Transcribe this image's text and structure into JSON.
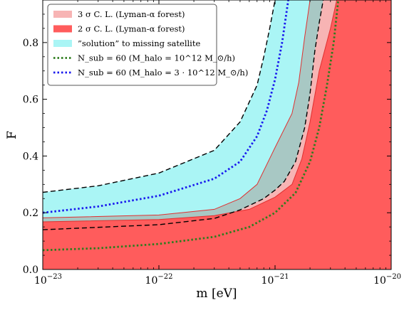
{
  "chart_data": {
    "type": "area",
    "xlabel": "m [eV]",
    "ylabel": "F",
    "xscale": "log",
    "xlim": [
      1e-23,
      1e-20
    ],
    "ylim": [
      0.0,
      0.95
    ],
    "x_tick_labels": [
      {
        "value": 1e-23,
        "mant": "10",
        "exp": "−23"
      },
      {
        "value": 1e-22,
        "mant": "10",
        "exp": "−22"
      },
      {
        "value": 1e-21,
        "mant": "10",
        "exp": "−21"
      },
      {
        "value": 1e-20,
        "mant": "10",
        "exp": "−20"
      }
    ],
    "y_tick_labels": [
      "0.0",
      "0.2",
      "0.4",
      "0.6",
      "0.8"
    ],
    "y_tick_values": [
      0.0,
      0.2,
      0.4,
      0.6,
      0.8
    ],
    "legend_position": "top-left",
    "colors": {
      "cl3": "#f7b4b4",
      "cl2": "#ff5c5c",
      "cl_line": "#e03030",
      "solution": "#aaf5f5",
      "overlap": "#a8c8c4",
      "n60_green": "#2e7d1e",
      "n60_blue": "#1a1aee"
    },
    "legend": [
      {
        "key": "cl3",
        "kind": "patch",
        "text": "3 σ  C. L. (Lyman-α forest)"
      },
      {
        "key": "cl2",
        "kind": "patch",
        "text": "2 σ  C. L. (Lyman-α forest)"
      },
      {
        "key": "solution",
        "kind": "patch",
        "text": "”solution” to missing satellite"
      },
      {
        "key": "n60_green",
        "kind": "dotted",
        "text": "N_sub = 60 (M_halo = 10^12 M_⊙/h)"
      },
      {
        "key": "n60_blue",
        "kind": "dotted",
        "text": "N_sub = 60 (M_halo = 3 · 10^12 M_⊙/h)"
      }
    ],
    "series": [
      {
        "key": "cl3",
        "kind": "region_upper_boundary",
        "points": [
          [
            1e-23,
            0.182
          ],
          [
            1e-22,
            0.192
          ],
          [
            3e-22,
            0.212
          ],
          [
            5e-22,
            0.25
          ],
          [
            7e-22,
            0.3
          ],
          [
            1e-21,
            0.43
          ],
          [
            1.4e-21,
            0.55
          ],
          [
            1.6e-21,
            0.66
          ],
          [
            1.8e-21,
            0.82
          ],
          [
            2e-21,
            0.95
          ]
        ]
      },
      {
        "key": "cl2",
        "kind": "region_upper_boundary",
        "points": [
          [
            1e-23,
            0.168
          ],
          [
            1e-22,
            0.176
          ],
          [
            3e-22,
            0.19
          ],
          [
            6e-22,
            0.212
          ],
          [
            1e-21,
            0.255
          ],
          [
            1.4e-21,
            0.3
          ],
          [
            1.7e-21,
            0.39
          ],
          [
            2e-21,
            0.52
          ],
          [
            2.4e-21,
            0.7
          ],
          [
            3e-21,
            0.85
          ],
          [
            3.4e-21,
            0.95
          ]
        ]
      },
      {
        "key": "solution_upper",
        "kind": "band_boundary",
        "points": [
          [
            1e-23,
            0.272
          ],
          [
            3e-23,
            0.295
          ],
          [
            1e-22,
            0.34
          ],
          [
            3e-22,
            0.42
          ],
          [
            5e-22,
            0.52
          ],
          [
            7e-22,
            0.65
          ],
          [
            8e-22,
            0.75
          ],
          [
            9e-22,
            0.85
          ],
          [
            1e-21,
            0.95
          ]
        ]
      },
      {
        "key": "solution_lower",
        "kind": "band_boundary",
        "points": [
          [
            1e-23,
            0.14
          ],
          [
            1e-22,
            0.158
          ],
          [
            3e-22,
            0.18
          ],
          [
            5e-22,
            0.21
          ],
          [
            8e-22,
            0.25
          ],
          [
            1e-21,
            0.28
          ],
          [
            1.2e-21,
            0.31
          ],
          [
            1.5e-21,
            0.38
          ],
          [
            1.8e-21,
            0.5
          ],
          [
            2e-21,
            0.62
          ],
          [
            2.2e-21,
            0.77
          ],
          [
            2.4e-21,
            0.87
          ],
          [
            2.6e-21,
            0.95
          ]
        ]
      },
      {
        "key": "n60_green",
        "kind": "line",
        "points": [
          [
            1e-23,
            0.068
          ],
          [
            3e-23,
            0.075
          ],
          [
            1e-22,
            0.09
          ],
          [
            3e-22,
            0.115
          ],
          [
            6e-22,
            0.15
          ],
          [
            1e-21,
            0.2
          ],
          [
            1.5e-21,
            0.27
          ],
          [
            2e-21,
            0.38
          ],
          [
            2.4e-21,
            0.5
          ],
          [
            2.8e-21,
            0.65
          ],
          [
            3.2e-21,
            0.8
          ],
          [
            3.5e-21,
            0.95
          ]
        ]
      },
      {
        "key": "n60_blue",
        "kind": "line",
        "points": [
          [
            1e-23,
            0.2
          ],
          [
            3e-23,
            0.222
          ],
          [
            1e-22,
            0.26
          ],
          [
            3e-22,
            0.32
          ],
          [
            5e-22,
            0.38
          ],
          [
            7e-22,
            0.47
          ],
          [
            8.5e-22,
            0.56
          ],
          [
            1e-21,
            0.67
          ],
          [
            1.15e-21,
            0.8
          ],
          [
            1.3e-21,
            0.95
          ]
        ]
      }
    ]
  }
}
